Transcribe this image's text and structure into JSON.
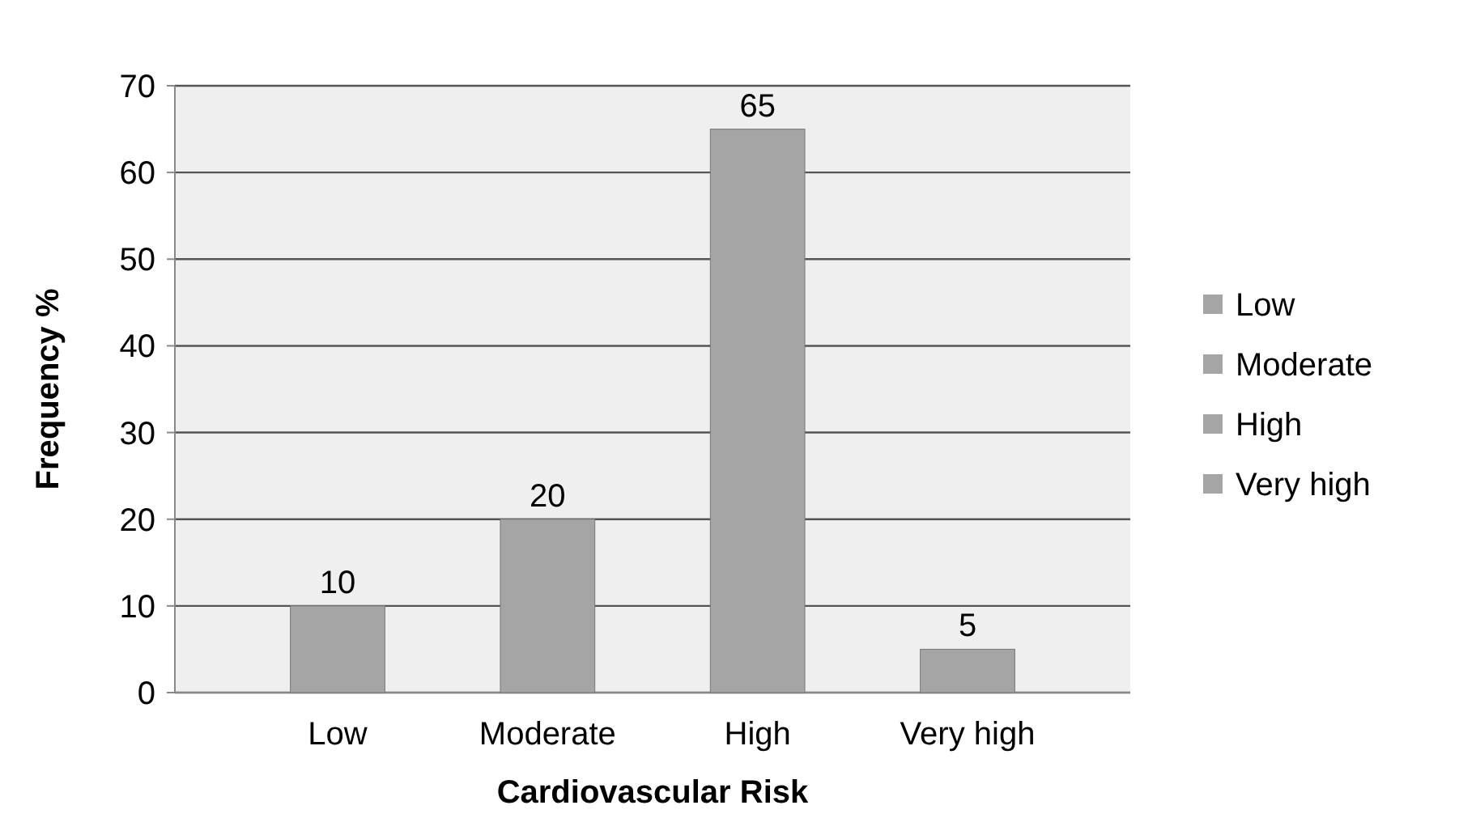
{
  "chart_data": {
    "type": "bar",
    "xlabel": "Cardiovascular Risk",
    "ylabel": "Frequency %",
    "categories": [
      "Low",
      "Moderate",
      "High",
      "Very high"
    ],
    "series": [
      {
        "name": "Low",
        "color": "#a5a5a5",
        "values": [
          10,
          null,
          null,
          null
        ]
      },
      {
        "name": "Moderate",
        "color": "#a5a5a5",
        "values": [
          null,
          20,
          null,
          null
        ]
      },
      {
        "name": "High",
        "color": "#a5a5a5",
        "values": [
          null,
          null,
          65,
          null
        ]
      },
      {
        "name": "Very high",
        "color": "#a5a5a5",
        "values": [
          null,
          null,
          null,
          5
        ]
      }
    ],
    "ylim": [
      0,
      70
    ],
    "yticks": [
      0,
      10,
      20,
      30,
      40,
      50,
      60,
      70
    ],
    "grid": "y",
    "data_labels": true,
    "legend": "right"
  }
}
